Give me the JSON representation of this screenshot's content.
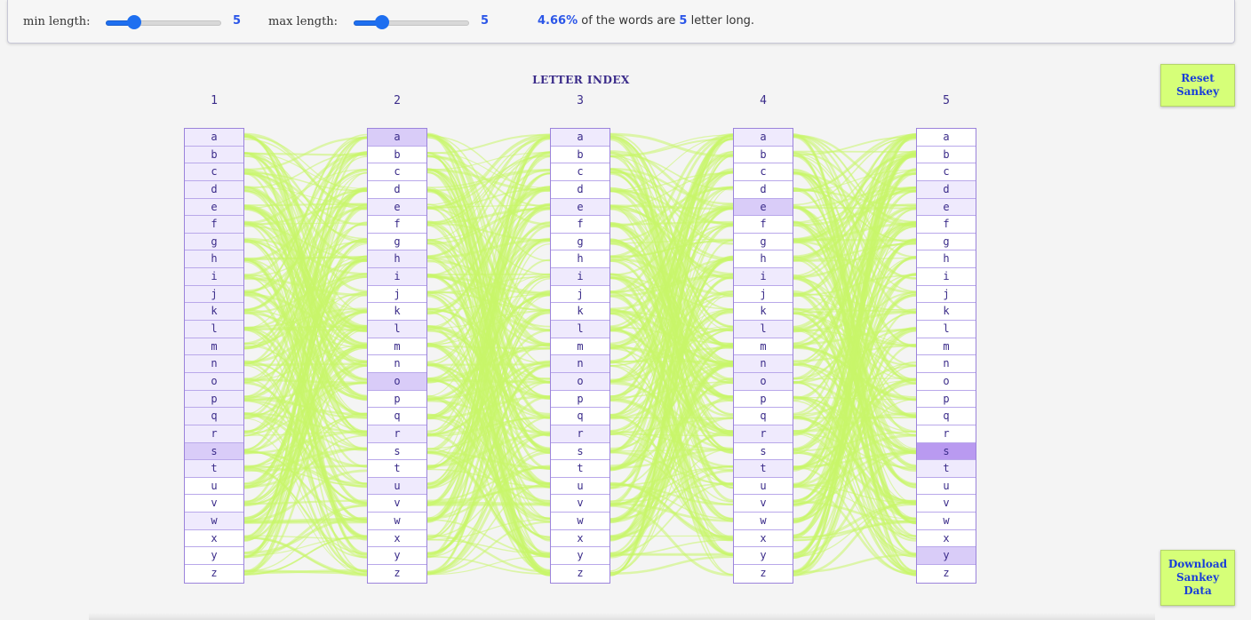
{
  "controls": {
    "min_label": "min length:",
    "min_value": "5",
    "min_fraction": 0.25,
    "max_label": "max length:",
    "max_value": "5",
    "max_fraction": 0.25
  },
  "status": {
    "percent": "4.66%",
    "text_a": "of the words are",
    "length": "5",
    "text_b": "letter long."
  },
  "buttons": {
    "reset": "Reset Sankey",
    "download": "Download Sankey Data"
  },
  "axis_title": "LETTER INDEX",
  "columns": [
    {
      "index": "1",
      "highlight": {
        "a": 1,
        "b": 1,
        "c": 1,
        "d": 1,
        "e": 1,
        "f": 1,
        "g": 1,
        "h": 1,
        "i": 1,
        "j": 1,
        "k": 1,
        "l": 1,
        "m": 1,
        "n": 1,
        "o": 1,
        "p": 1,
        "q": 1,
        "r": 1,
        "s": 2,
        "t": 1,
        "u": 0,
        "v": 0,
        "w": 1,
        "x": 0,
        "y": 0,
        "z": 0
      }
    },
    {
      "index": "2",
      "highlight": {
        "a": 2,
        "b": 0,
        "c": 0,
        "d": 0,
        "e": 1,
        "f": 0,
        "g": 0,
        "h": 1,
        "i": 1,
        "j": 0,
        "k": 0,
        "l": 1,
        "m": 0,
        "n": 0,
        "o": 2,
        "p": 0,
        "q": 0,
        "r": 1,
        "s": 0,
        "t": 0,
        "u": 1,
        "v": 0,
        "w": 0,
        "x": 0,
        "y": 0,
        "z": 0
      }
    },
    {
      "index": "3",
      "highlight": {
        "a": 1,
        "b": 0,
        "c": 0,
        "d": 0,
        "e": 1,
        "f": 0,
        "g": 0,
        "h": 0,
        "i": 1,
        "j": 0,
        "k": 0,
        "l": 1,
        "m": 0,
        "n": 1,
        "o": 1,
        "p": 0,
        "q": 0,
        "r": 1,
        "s": 0,
        "t": 0,
        "u": 0,
        "v": 0,
        "w": 0,
        "x": 0,
        "y": 0,
        "z": 0
      }
    },
    {
      "index": "4",
      "highlight": {
        "a": 1,
        "b": 0,
        "c": 0,
        "d": 0,
        "e": 2,
        "f": 0,
        "g": 0,
        "h": 0,
        "i": 1,
        "j": 0,
        "k": 0,
        "l": 1,
        "m": 0,
        "n": 1,
        "o": 1,
        "p": 0,
        "q": 0,
        "r": 1,
        "s": 0,
        "t": 1,
        "u": 0,
        "v": 0,
        "w": 0,
        "x": 0,
        "y": 0,
        "z": 0
      }
    },
    {
      "index": "5",
      "highlight": {
        "a": 0,
        "b": 0,
        "c": 0,
        "d": 1,
        "e": 1,
        "f": 0,
        "g": 0,
        "h": 0,
        "i": 0,
        "j": 0,
        "k": 0,
        "l": 0,
        "m": 0,
        "n": 0,
        "o": 0,
        "p": 0,
        "q": 0,
        "r": 0,
        "s": 3,
        "t": 1,
        "u": 0,
        "v": 0,
        "w": 0,
        "x": 0,
        "y": 2,
        "z": 0
      }
    }
  ],
  "letters": [
    "a",
    "b",
    "c",
    "d",
    "e",
    "f",
    "g",
    "h",
    "i",
    "j",
    "k",
    "l",
    "m",
    "n",
    "o",
    "p",
    "q",
    "r",
    "s",
    "t",
    "u",
    "v",
    "w",
    "x",
    "y",
    "z"
  ],
  "colors": {
    "flow": "#c9f56a",
    "accent": "#2b56e8",
    "node_border": "#9b83db",
    "highlight_1": "#efeafd",
    "highlight_2": "#d9ccf8",
    "highlight_3": "#b99af0",
    "button": "#d6ff78"
  }
}
